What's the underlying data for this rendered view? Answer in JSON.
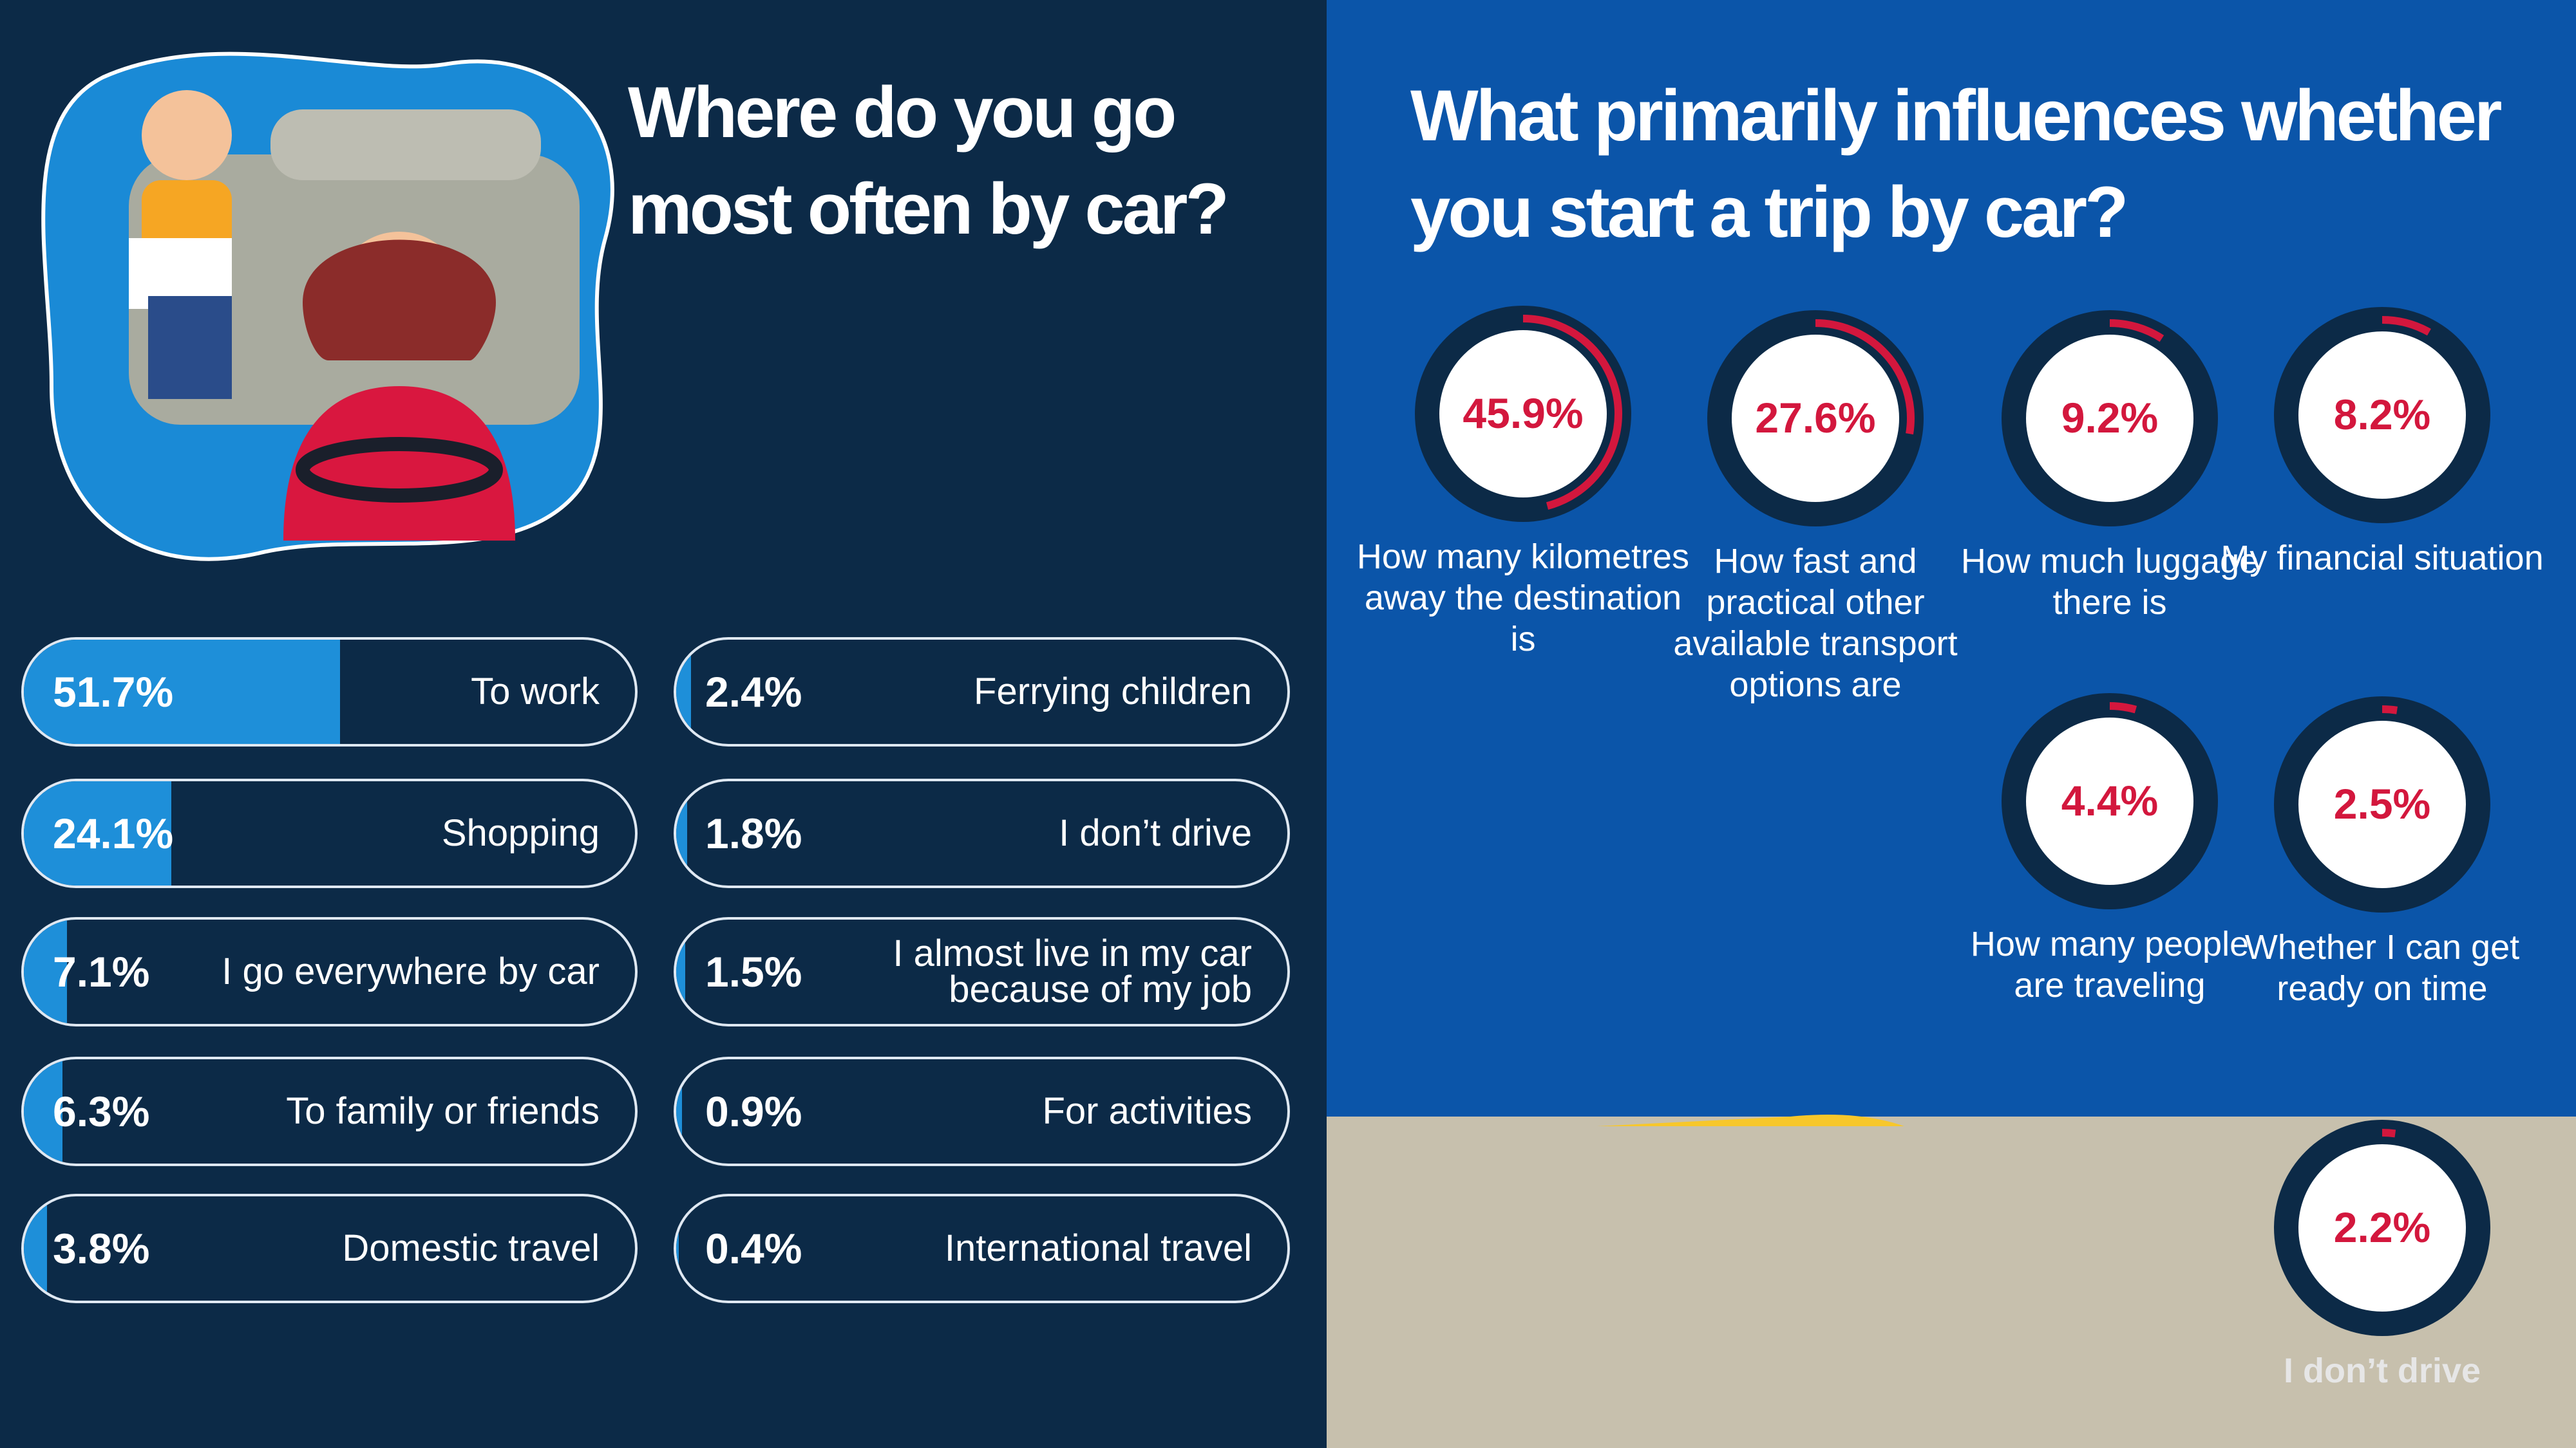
{
  "chart_data": [
    {
      "type": "bar",
      "title": "Where do you go most often by car?",
      "categories": [
        "To work",
        "Shopping",
        "I go everywhere by car",
        "To family or friends",
        "Domestic travel",
        "Ferrying children",
        "I don’t drive",
        "I almost live in my car because of my job",
        "For activities",
        "International travel"
      ],
      "values": [
        51.7,
        24.1,
        7.1,
        6.3,
        3.8,
        2.4,
        1.8,
        1.5,
        0.9,
        0.4
      ],
      "value_labels": [
        "51.7%",
        "24.1%",
        "7.1%",
        "6.3%",
        "3.8%",
        "2.4%",
        "1.8%",
        "1.5%",
        "0.9%",
        "0.4%"
      ],
      "xlim": [
        0,
        100
      ],
      "color": "#1e8fd9"
    },
    {
      "type": "gauge",
      "title": "What primarily influences whether you start a trip by car?",
      "categories": [
        "How many kilometres away the destination is",
        "How fast and practical other available transport options are",
        "How much luggage there is",
        "My financial situation",
        "How many people are traveling",
        "Whether I can get ready on time",
        "I don’t drive"
      ],
      "values": [
        45.9,
        27.6,
        9.2,
        8.2,
        4.4,
        2.5,
        2.2
      ],
      "value_labels": [
        "45.9%",
        "27.6%",
        "9.2%",
        "8.2%",
        "4.4%",
        "2.5%",
        "2.2%"
      ],
      "ylim": [
        0,
        100
      ],
      "color": "#d3173d"
    }
  ]
}
